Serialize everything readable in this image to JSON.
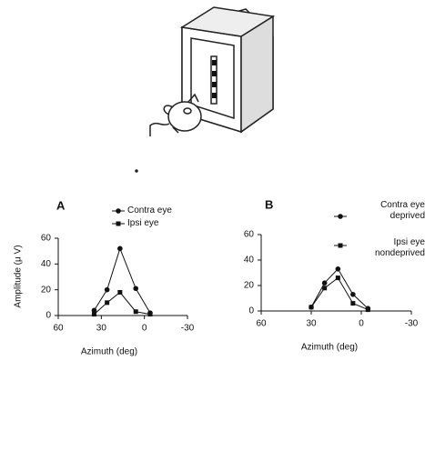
{
  "chart_data": [
    {
      "type": "line",
      "title": "A",
      "x_label": "Azimuth (deg)",
      "y_label": "Amplitude (μ V)",
      "x": [
        35,
        26,
        17,
        6,
        -4
      ],
      "series": [
        {
          "name": "Contra eye",
          "color": "#111111",
          "marker": "circle",
          "values": [
            4,
            20,
            52,
            21,
            2
          ]
        },
        {
          "name": "Ipsi eye",
          "color": "#111111",
          "marker": "square",
          "values": [
            1,
            10,
            18,
            3,
            1
          ]
        }
      ],
      "xlim": [
        60,
        -30
      ],
      "xticks": [
        60,
        30,
        0,
        -30
      ],
      "ylim": [
        0,
        60
      ],
      "yticks": [
        0,
        20,
        40,
        60
      ],
      "grid": false
    },
    {
      "type": "line",
      "title": "B",
      "x_label": "Azimuth (deg)",
      "x": [
        30,
        22,
        14,
        5,
        -4
      ],
      "series": [
        {
          "name": "Contra eye deprived",
          "color": "#111111",
          "marker": "circle",
          "values": [
            3,
            22,
            33,
            13,
            2
          ]
        },
        {
          "name": "Ipsi eye nondeprived",
          "color": "#111111",
          "marker": "square",
          "values": [
            3,
            18,
            26,
            6,
            1
          ]
        }
      ],
      "xlim": [
        60,
        -30
      ],
      "xticks": [
        60,
        30,
        0,
        -30
      ],
      "ylim": [
        0,
        60
      ],
      "yticks": [
        0,
        20,
        40,
        60
      ],
      "grid": false
    }
  ]
}
